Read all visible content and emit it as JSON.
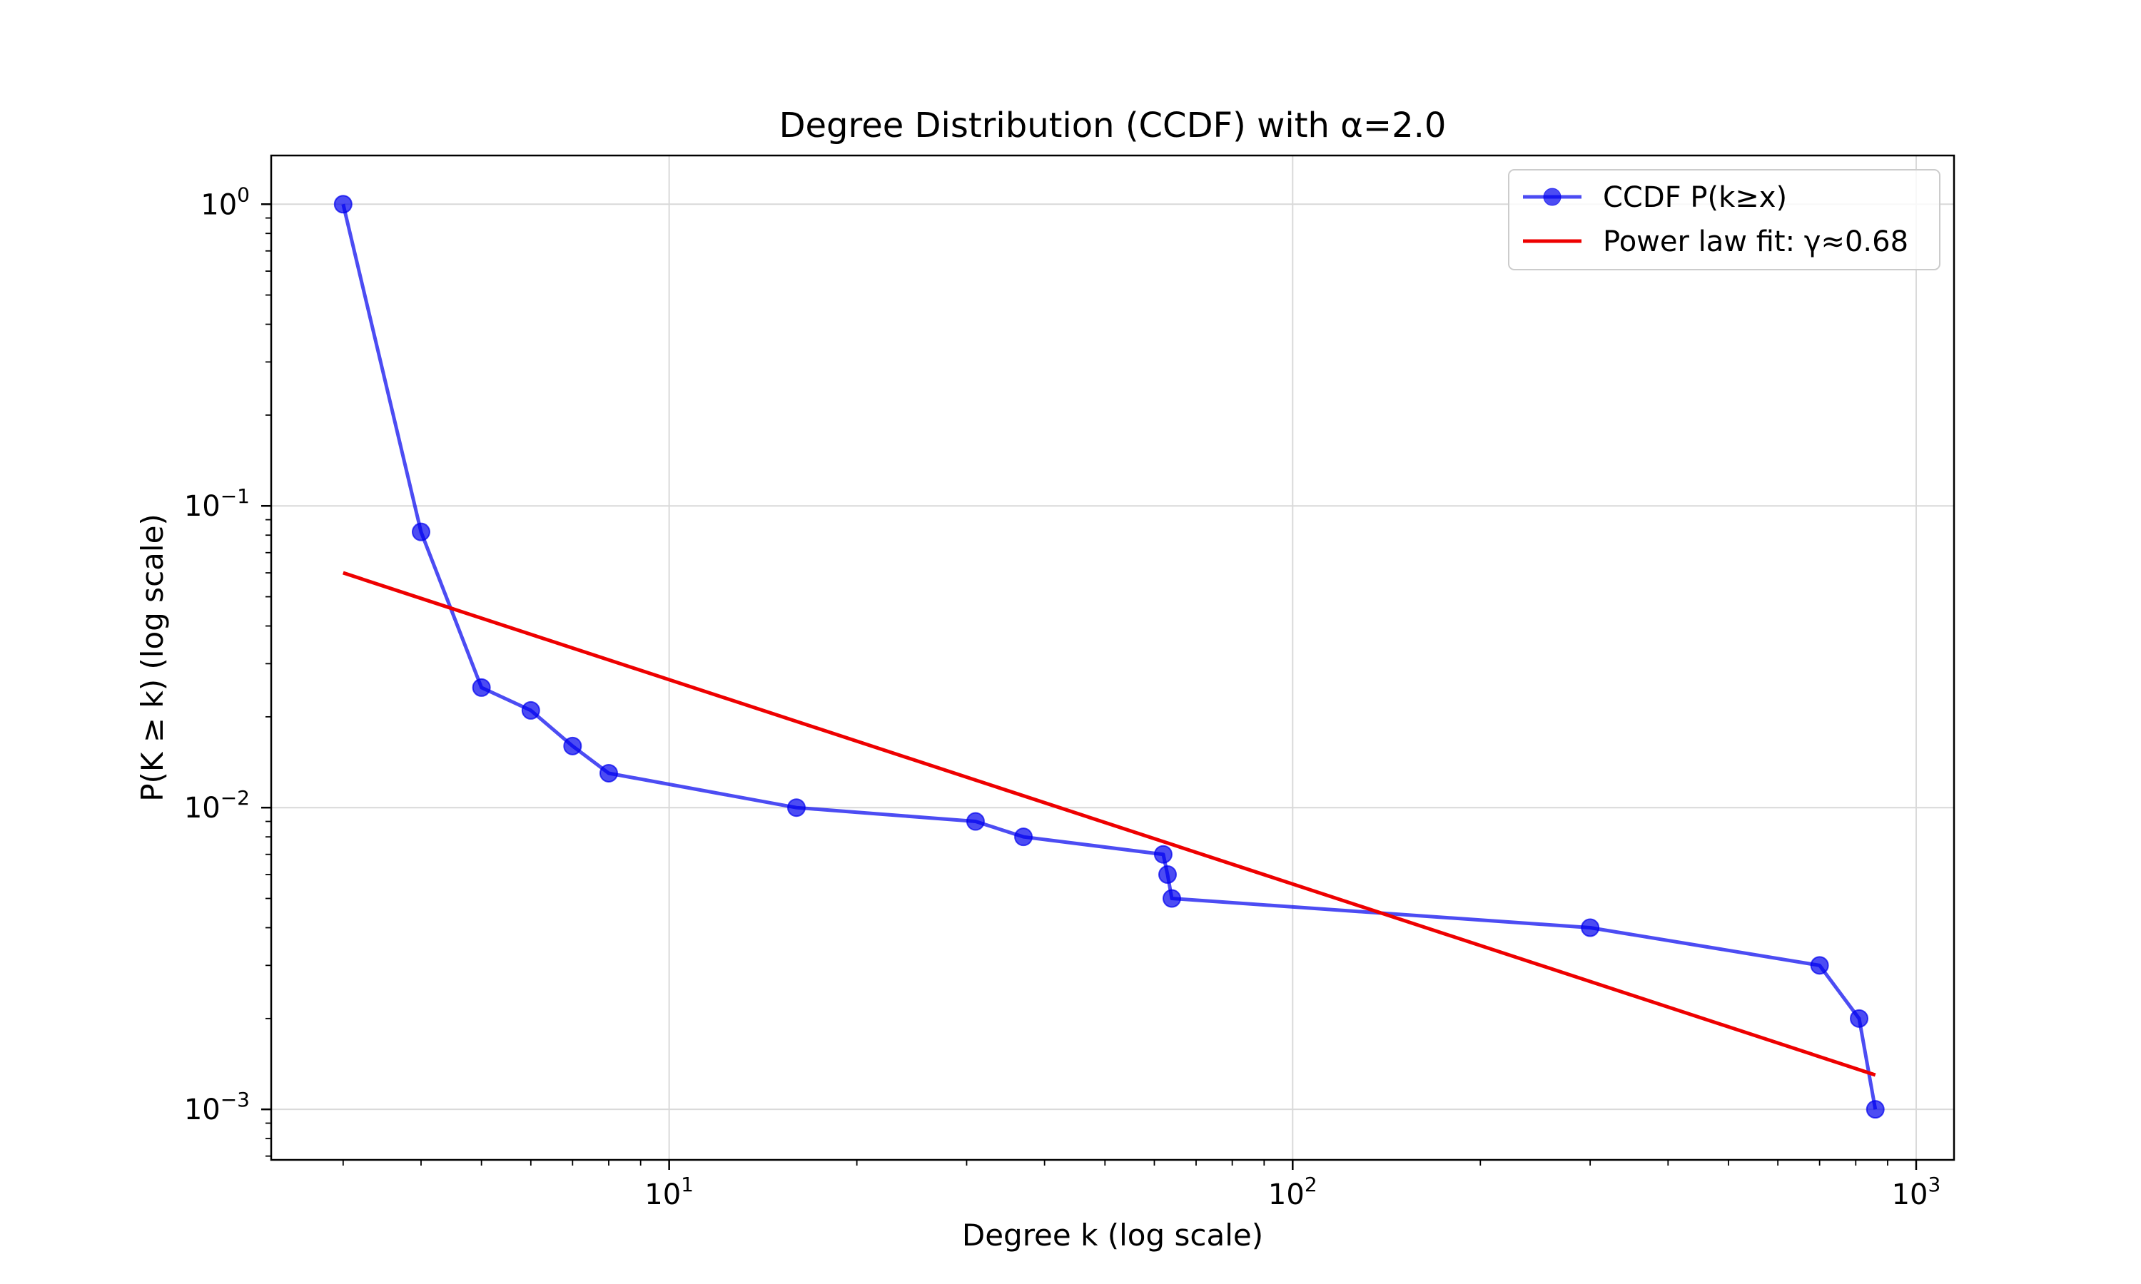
{
  "chart_data": {
    "type": "line",
    "title": "Degree Distribution (CCDF) with α=2.0",
    "xlabel": "Degree k (log scale)",
    "ylabel": "P(K ≥ k) (log scale)",
    "x_scale": "log",
    "y_scale": "log",
    "xlim": [
      2.3,
      1150
    ],
    "ylim": [
      0.00068,
      1.45
    ],
    "grid": true,
    "legend_position": "top-right",
    "x_ticks": [
      {
        "value": 10,
        "base": "10",
        "exp": "1"
      },
      {
        "value": 100,
        "base": "10",
        "exp": "2"
      },
      {
        "value": 1000,
        "base": "10",
        "exp": "3"
      }
    ],
    "y_ticks": [
      {
        "value": 1,
        "base": "10",
        "exp": "0"
      },
      {
        "value": 0.1,
        "base": "10",
        "exp": "−1"
      },
      {
        "value": 0.01,
        "base": "10",
        "exp": "−2"
      },
      {
        "value": 0.001,
        "base": "10",
        "exp": "−3"
      }
    ],
    "series": [
      {
        "name": "CCDF P(k≥x)",
        "kind": "line-markers",
        "color": "#0000ee",
        "x": [
          3,
          4,
          5,
          6,
          7,
          8,
          16,
          31,
          37,
          62,
          63,
          64,
          300,
          700,
          810,
          860
        ],
        "y": [
          1.0,
          0.082,
          0.025,
          0.021,
          0.016,
          0.013,
          0.01,
          0.009,
          0.008,
          0.007,
          0.006,
          0.005,
          0.004,
          0.003,
          0.002,
          0.001
        ]
      },
      {
        "name": "Power law fit: γ≈0.68",
        "kind": "line",
        "color": "#ee0000",
        "x": [
          3,
          860
        ],
        "y": [
          0.06,
          0.0013
        ]
      }
    ]
  }
}
